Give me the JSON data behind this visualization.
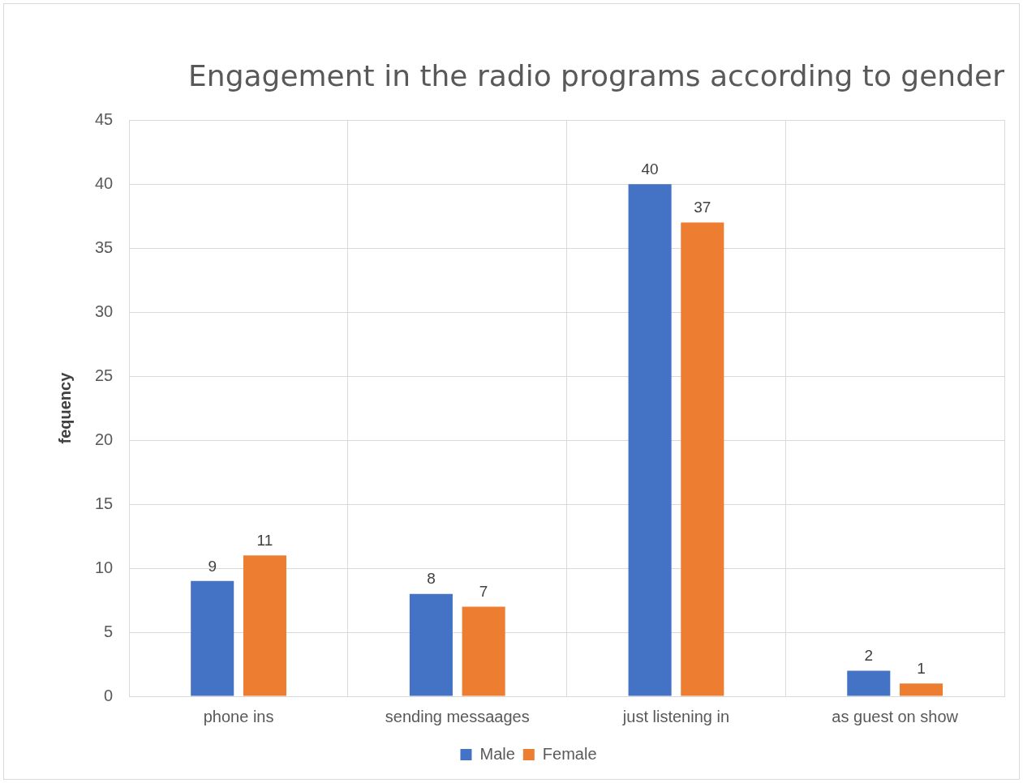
{
  "chart_data": {
    "type": "bar",
    "title": "Engagement in the radio programs according to gender",
    "ylabel": "fequency",
    "categories": [
      "phone ins",
      "sending messaages",
      "just listening in",
      "as guest on show"
    ],
    "series": [
      {
        "name": "Male",
        "color": "#4472c4",
        "values": [
          9,
          8,
          40,
          2
        ]
      },
      {
        "name": "Female",
        "color": "#ed7d31",
        "values": [
          11,
          7,
          37,
          1
        ]
      }
    ],
    "ylim": [
      0,
      45
    ],
    "yticks": [
      0,
      5,
      10,
      15,
      20,
      25,
      30,
      35,
      40,
      45
    ],
    "grid": true,
    "legend": "bottom",
    "data_labels": true
  }
}
